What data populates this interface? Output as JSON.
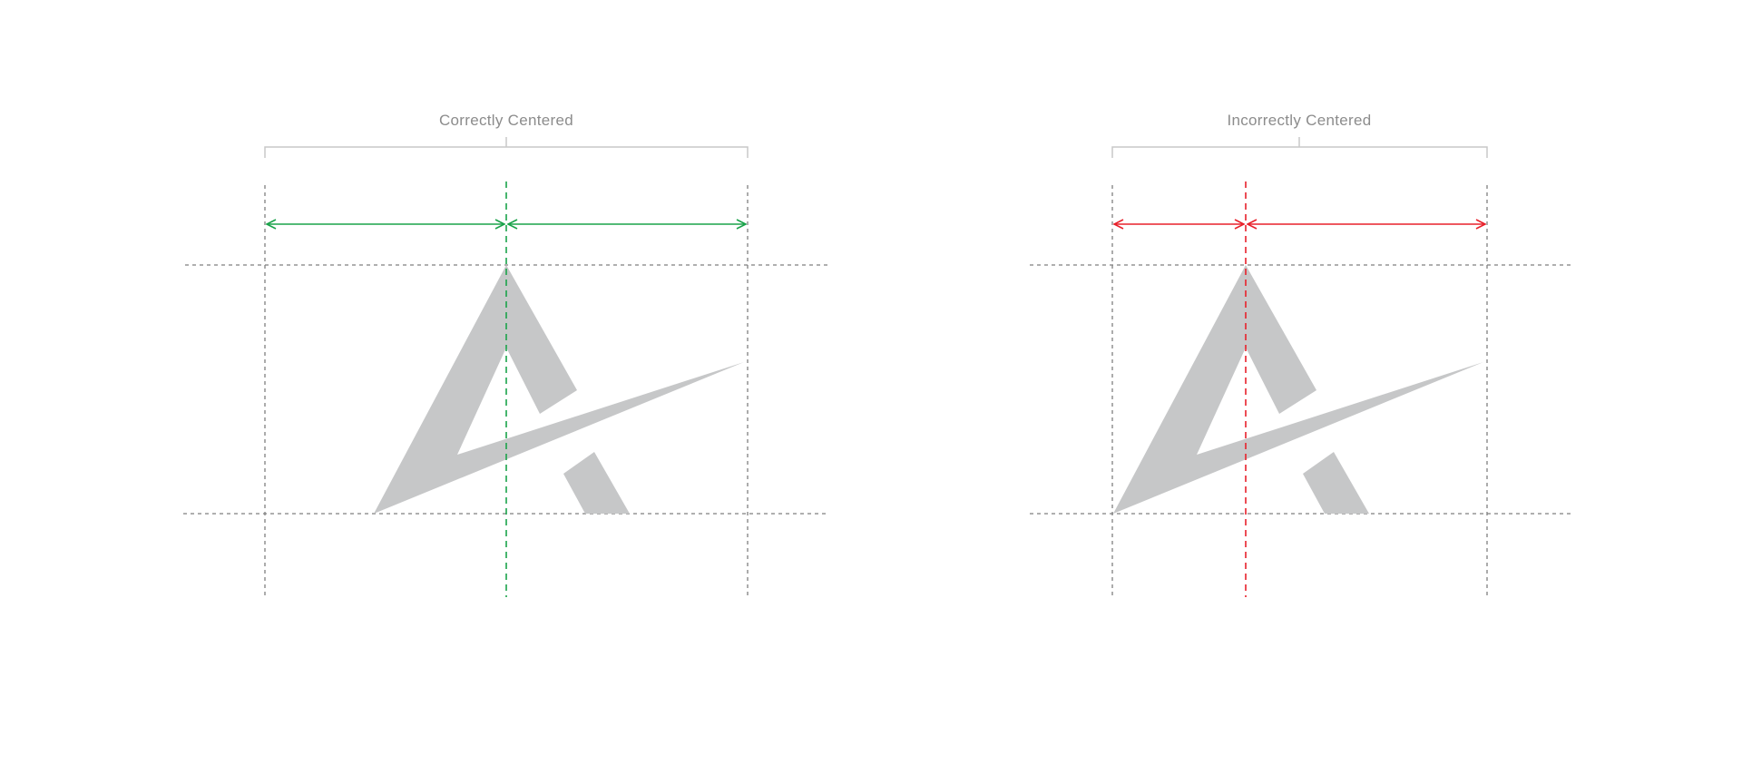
{
  "panels": [
    {
      "id": "correct",
      "title": "Correctly Centered",
      "status": "correct",
      "center_color": "#1aa34a"
    },
    {
      "id": "incorrect",
      "title": "Incorrectly Centered",
      "status": "incorrect",
      "center_color": "#e8212b"
    }
  ],
  "colors": {
    "logo": "#c6c7c8",
    "guide": "#7f7f7f",
    "bracket": "#c8c8c8",
    "caption": "#8c8c8c"
  },
  "icons": {
    "logo": "stylized-letter-a-with-swoosh-logo-mark"
  }
}
